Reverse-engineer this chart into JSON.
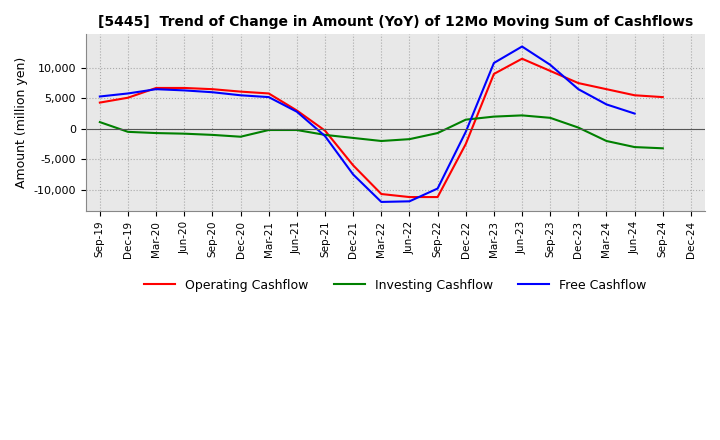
{
  "title": "[5445]  Trend of Change in Amount (YoY) of 12Mo Moving Sum of Cashflows",
  "ylabel": "Amount (million yen)",
  "x_labels": [
    "Sep-19",
    "Dec-19",
    "Mar-20",
    "Jun-20",
    "Sep-20",
    "Dec-20",
    "Mar-21",
    "Jun-21",
    "Sep-21",
    "Dec-21",
    "Mar-22",
    "Jun-22",
    "Sep-22",
    "Dec-22",
    "Mar-23",
    "Jun-23",
    "Sep-23",
    "Dec-23",
    "Mar-24",
    "Jun-24",
    "Sep-24",
    "Dec-24"
  ],
  "operating_cashflow": [
    4300,
    5100,
    6700,
    6700,
    6500,
    6100,
    5800,
    3000,
    -300,
    -6000,
    -10700,
    -11200,
    -11200,
    -2500,
    9000,
    11500,
    9500,
    7500,
    6500,
    5500,
    5200,
    null
  ],
  "investing_cashflow": [
    1100,
    -500,
    -700,
    -800,
    -1000,
    -1300,
    -200,
    -200,
    -1000,
    -1500,
    -2000,
    -1700,
    -700,
    1500,
    2000,
    2200,
    1800,
    200,
    -2000,
    -3000,
    -3200,
    null
  ],
  "free_cashflow": [
    5300,
    5800,
    6500,
    6300,
    6000,
    5500,
    5200,
    2800,
    -1200,
    -7500,
    -12000,
    -11900,
    -9800,
    -500,
    10800,
    13500,
    10500,
    6500,
    4000,
    2500,
    null,
    null
  ],
  "ylim": [
    -13500,
    15500
  ],
  "yticks": [
    -10000,
    -5000,
    0,
    5000,
    10000
  ],
  "line_colors": {
    "operating": "#ff0000",
    "investing": "#008000",
    "free": "#0000ff"
  },
  "legend_labels": [
    "Operating Cashflow",
    "Investing Cashflow",
    "Free Cashflow"
  ],
  "grid_color": "#aaaaaa",
  "grid_style": "dotted",
  "background_color": "#ffffff",
  "plot_bg_color": "#e8e8e8"
}
